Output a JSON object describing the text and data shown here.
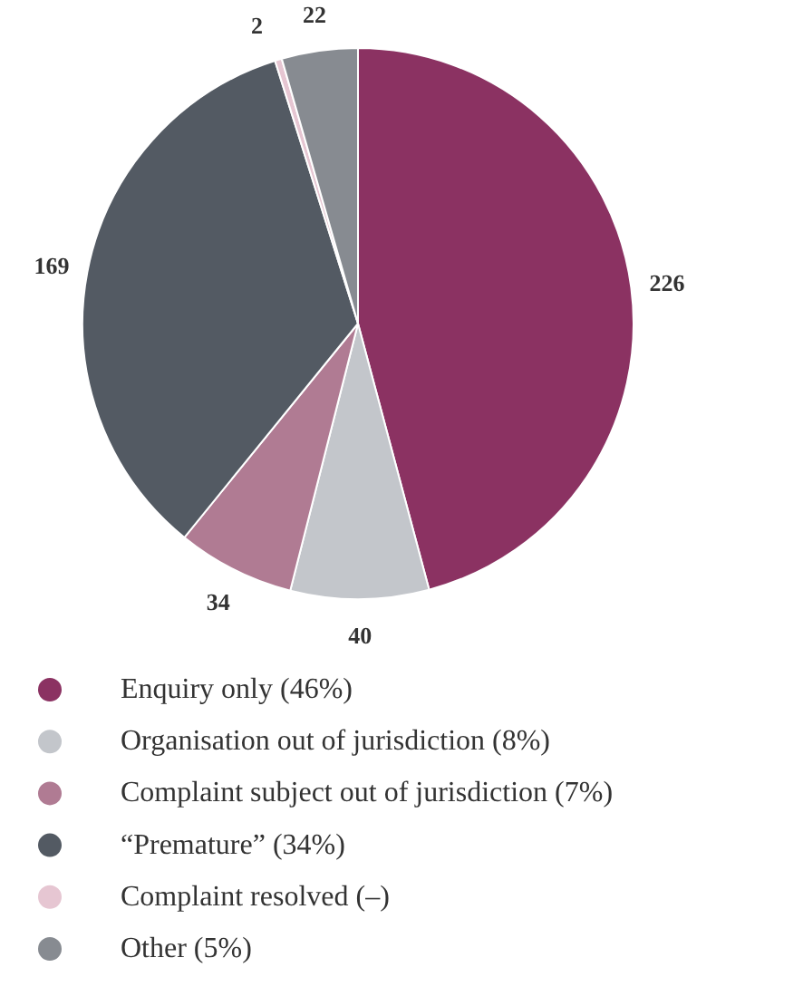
{
  "chart_data": {
    "type": "pie",
    "categories": [
      "Enquiry only (46%)",
      "Organisation out of jurisdiction (8%)",
      "Complaint subject out of jurisdiction (7%)",
      "“Premature” (34%)",
      "Complaint resolved (–)",
      "Other (5%)"
    ],
    "values": [
      226,
      40,
      34,
      169,
      2,
      22
    ],
    "colors": [
      "#8b3262",
      "#c3c6cb",
      "#b07b93",
      "#535a63",
      "#e6c6d2",
      "#878b91"
    ],
    "data_labels": true,
    "legend": "bottom"
  }
}
